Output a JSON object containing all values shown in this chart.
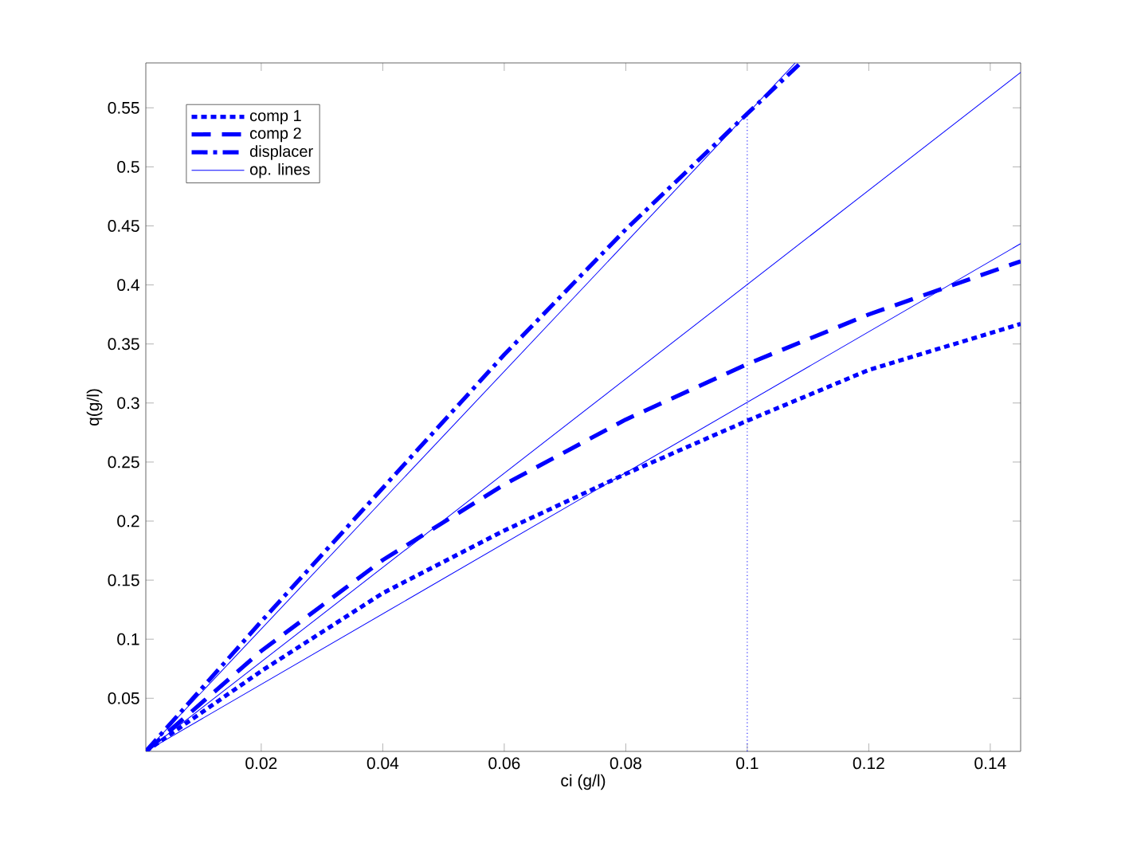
{
  "chart_data": {
    "type": "line",
    "xlabel": "ci (g/l)",
    "ylabel": "q(g/l)",
    "xlim": [
      0.001,
      0.145
    ],
    "ylim": [
      0.005,
      0.588
    ],
    "xticks": [
      0.02,
      0.04,
      0.06,
      0.08,
      0.1,
      0.12,
      0.14
    ],
    "yticks": [
      0.05,
      0.1,
      0.15,
      0.2,
      0.25,
      0.3,
      0.35,
      0.4,
      0.45,
      0.5,
      0.55
    ],
    "grid": false,
    "legend": "top left",
    "series": [
      {
        "name": "comp 1",
        "color": "#0000ff",
        "line_style": "dotted",
        "x": [
          0.001,
          0.02,
          0.04,
          0.06,
          0.08,
          0.1,
          0.12,
          0.145
        ],
        "values": [
          0.005,
          0.073,
          0.139,
          0.192,
          0.24,
          0.285,
          0.328,
          0.367
        ]
      },
      {
        "name": "comp 2",
        "color": "#0000ff",
        "line_style": "dashed",
        "x": [
          0.001,
          0.02,
          0.04,
          0.06,
          0.08,
          0.1,
          0.12,
          0.145
        ],
        "values": [
          0.005,
          0.09,
          0.167,
          0.231,
          0.286,
          0.333,
          0.375,
          0.42
        ]
      },
      {
        "name": "displacer",
        "color": "#0000ff",
        "line_style": "dashdot",
        "x": [
          0.001,
          0.02,
          0.04,
          0.06,
          0.08,
          0.1,
          0.1088
        ],
        "values": [
          0.005,
          0.115,
          0.228,
          0.341,
          0.447,
          0.545,
          0.588
        ]
      },
      {
        "name": "op. lines",
        "color": "#0000ff",
        "line_style": "solid",
        "x": [
          0.001,
          0.1079
        ],
        "values": [
          0.005,
          0.588
        ]
      },
      {
        "color": "#0000ff",
        "line_style": "solid",
        "x": [
          0.001,
          0.145
        ],
        "values": [
          0.005,
          0.58
        ]
      },
      {
        "color": "#0000ff",
        "line_style": "solid",
        "x": [
          0.001,
          0.145
        ],
        "values": [
          0.005,
          0.435
        ]
      },
      {
        "color": "#0000ff",
        "line_style": "dotted",
        "x": [
          0.1,
          0.1
        ],
        "values": [
          0.005,
          0.545
        ]
      }
    ]
  }
}
